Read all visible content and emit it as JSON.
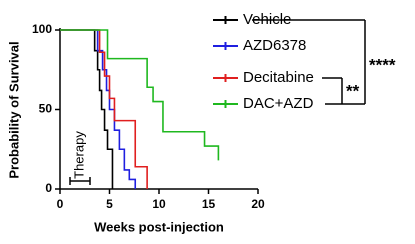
{
  "chart_data": {
    "type": "step",
    "x_label": "Weeks post-injection",
    "y_label": "Probability of Survival",
    "xlim": [
      0,
      20
    ],
    "xticks": [
      0,
      5,
      10,
      15,
      20
    ],
    "ylim": [
      0,
      100
    ],
    "yticks": [
      0,
      50,
      100
    ],
    "annotations": [
      "Therapy",
      "****",
      "**"
    ],
    "series": [
      {
        "name": "Vehicle",
        "color": "#000000",
        "x": [
          0,
          3.5,
          3.8,
          4.0,
          4.2,
          4.5,
          4.8,
          5.3
        ],
        "values": [
          100,
          87,
          75,
          62,
          50,
          37,
          25,
          0
        ]
      },
      {
        "name": "AZD6378",
        "color": "#1f1fe0",
        "x": [
          0,
          3.8,
          4.3,
          4.7,
          5.0,
          5.5,
          6.0,
          6.5,
          7.0,
          7.6
        ],
        "values": [
          100,
          87,
          75,
          62,
          50,
          37,
          25,
          12,
          6,
          0
        ]
      },
      {
        "name": "Decitabine",
        "color": "#e01f1f",
        "x": [
          0,
          4.0,
          4.5,
          5.0,
          5.5,
          7.6,
          8.8
        ],
        "values": [
          100,
          86,
          71,
          57,
          43,
          14,
          0
        ]
      },
      {
        "name": "DAC+AZD",
        "color": "#1fb81f",
        "x": [
          0,
          4.8,
          8.8,
          9.4,
          10.4,
          14.6,
          16
        ],
        "values": [
          100,
          82,
          64,
          55,
          36,
          27,
          18
        ]
      }
    ]
  }
}
